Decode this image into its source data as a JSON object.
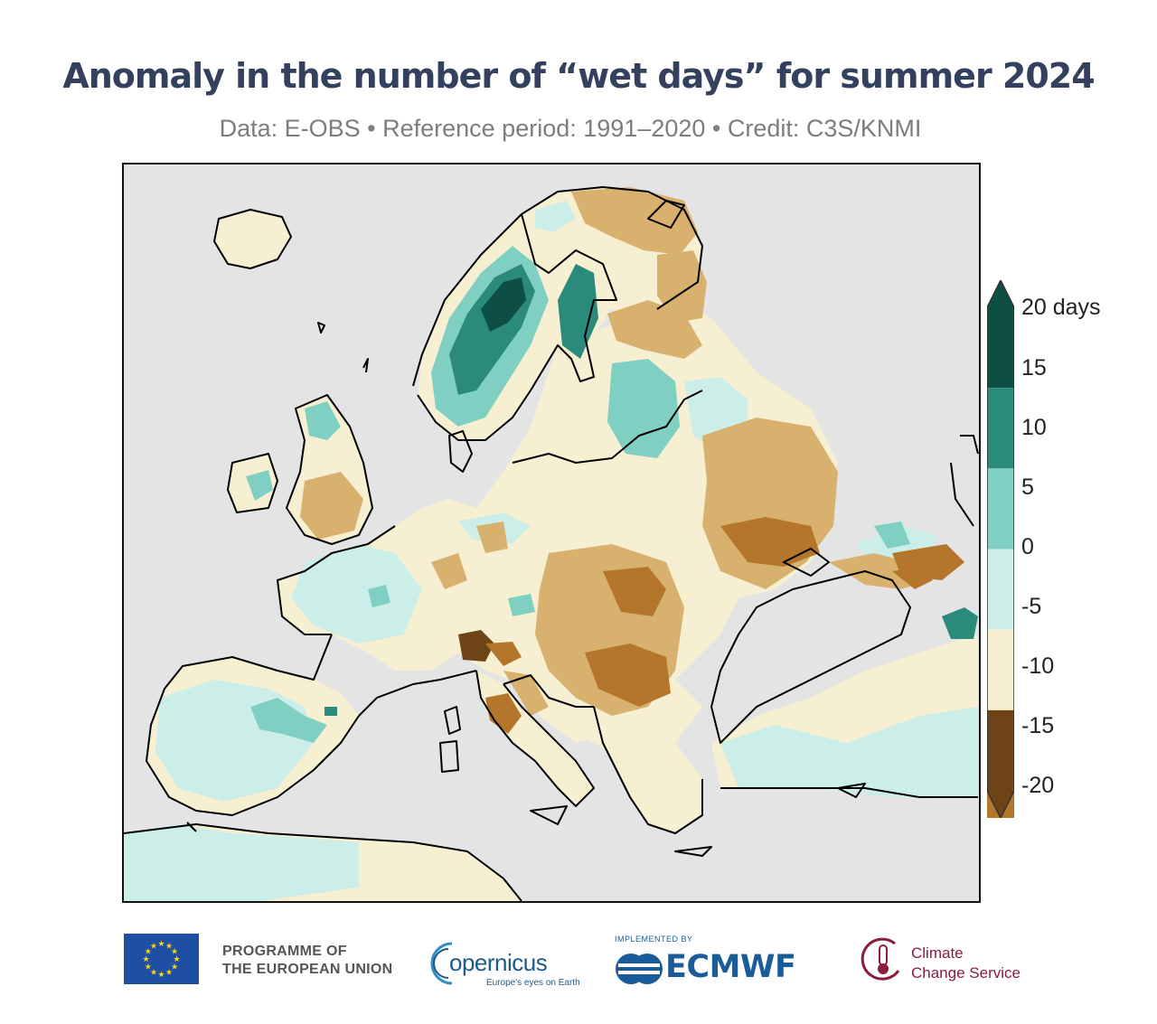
{
  "header": {
    "title": "Anomaly in the number of “wet days” for summer 2024",
    "subtitle": "Data: E-OBS • Reference period: 1991–2020 • Credit: C3S/KNMI"
  },
  "colorbar": {
    "unit_label": "20 days",
    "ticks": [
      "15",
      "10",
      "5",
      "0",
      "-5",
      "-10",
      "-15",
      "-20"
    ],
    "bins": [
      {
        "range": [
          15,
          20
        ],
        "color": "#0d4f44"
      },
      {
        "range": [
          10,
          15
        ],
        "color": "#2a8a7c"
      },
      {
        "range": [
          5,
          10
        ],
        "color": "#7fd0c2"
      },
      {
        "range": [
          0,
          5
        ],
        "color": "#cceee8"
      },
      {
        "range": [
          -5,
          0
        ],
        "color": "#f7efd2"
      },
      {
        "range": [
          -10,
          -5
        ],
        "color": "#d8b16e"
      },
      {
        "range": [
          -15,
          -10
        ],
        "color": "#b4762a"
      },
      {
        "range": [
          -20,
          -15
        ],
        "color": "#6e4417"
      }
    ]
  },
  "map": {
    "ocean_color": "#e4e4e4",
    "coastline_color": "#000000"
  },
  "footer": {
    "eu_line1": "PROGRAMME OF",
    "eu_line2": "THE EUROPEAN UNION",
    "copernicus_name": "opernicus",
    "copernicus_tagline": "Europe's eyes on Earth",
    "ecmwf_implemented": "IMPLEMENTED BY",
    "ecmwf_name": "ECMWF",
    "c3s_line1": "Climate",
    "c3s_line2": "Change Service"
  }
}
